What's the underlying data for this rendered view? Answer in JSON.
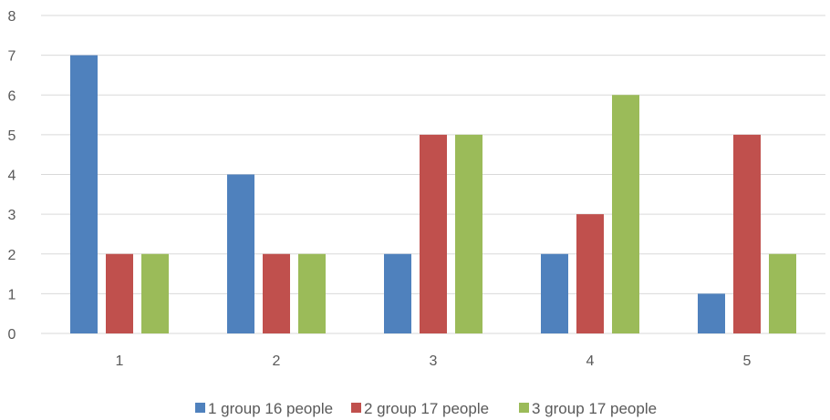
{
  "chart_data": {
    "type": "bar",
    "categories": [
      "1",
      "2",
      "3",
      "4",
      "5"
    ],
    "series": [
      {
        "name": "1 group 16 people",
        "values": [
          7,
          4,
          2,
          2,
          1
        ],
        "color": "#4f81bd"
      },
      {
        "name": "2 group 17 people",
        "values": [
          2,
          2,
          5,
          3,
          5
        ],
        "color": "#c0504d"
      },
      {
        "name": "3 group 17 people",
        "values": [
          2,
          2,
          5,
          6,
          2
        ],
        "color": "#9bbb59"
      }
    ],
    "y_ticks": [
      "0",
      "1",
      "2",
      "3",
      "4",
      "5",
      "6",
      "7",
      "8"
    ],
    "ylim": [
      0,
      8
    ],
    "grid": true,
    "legend_position": "bottom"
  }
}
